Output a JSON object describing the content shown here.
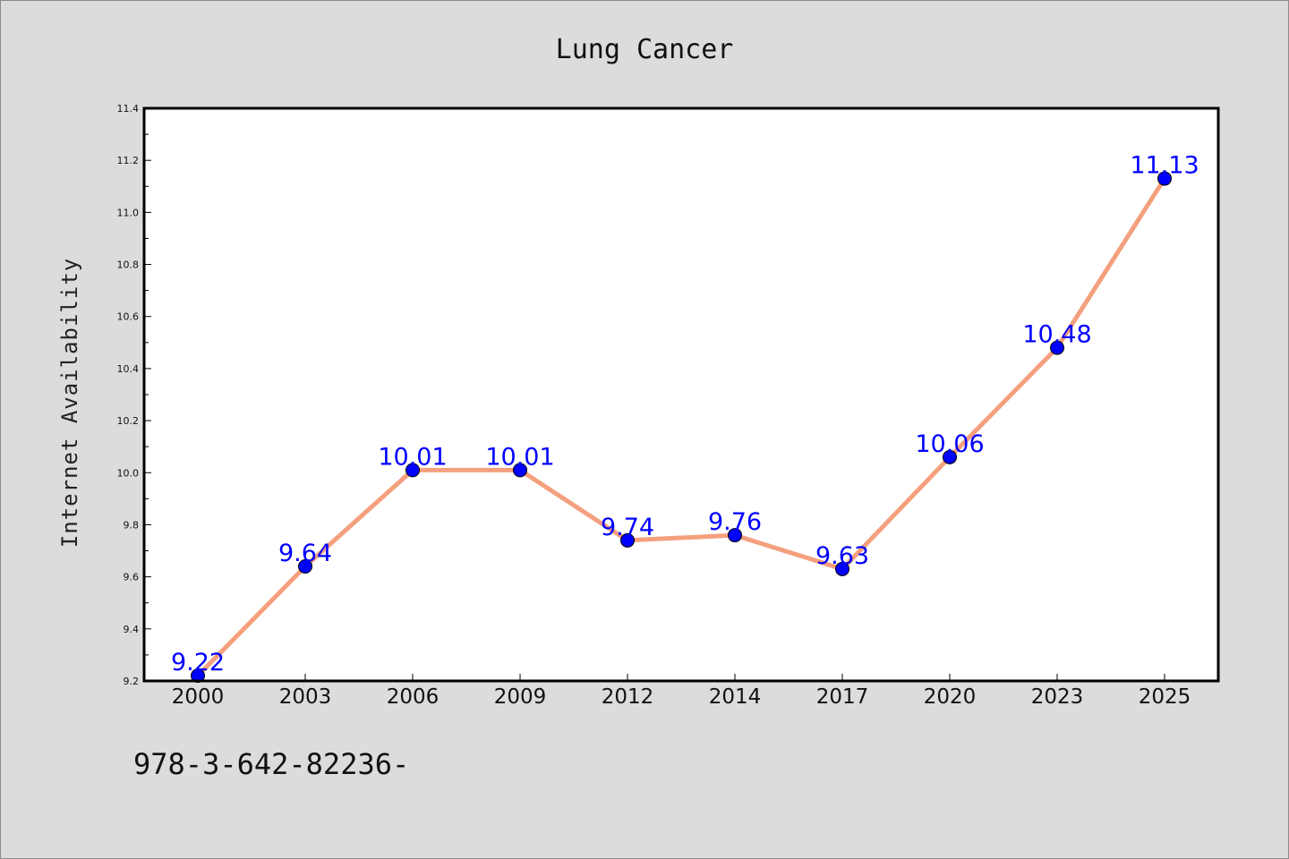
{
  "chart_data": {
    "type": "line",
    "title": "Lung Cancer",
    "xlabel": "",
    "ylabel": "Internet Availability",
    "categories": [
      "2000",
      "2003",
      "2006",
      "2009",
      "2012",
      "2014",
      "2017",
      "2020",
      "2023",
      "2025"
    ],
    "series": [
      {
        "values": [
          9.22,
          9.64,
          10.01,
          10.01,
          9.74,
          9.76,
          9.63,
          10.06,
          10.48,
          11.13
        ],
        "line_color": "#f4a07e",
        "marker_color": "#0000ff"
      }
    ],
    "data_labels": [
      "9.22",
      "9.64",
      "10.01",
      "10.01",
      "9.74",
      "9.76",
      "9.63",
      "10.06",
      "10.48",
      "11.13"
    ],
    "ylim": [
      9.2,
      11.4
    ],
    "y_ticks": [
      "9.2",
      "9.4",
      "9.6",
      "9.8",
      "10.0",
      "10.2",
      "10.4",
      "10.6",
      "10.8",
      "11.0",
      "11.2",
      "11.4"
    ],
    "grid": false,
    "legend": "none"
  },
  "footer": {
    "text": "978-3-642-82236-"
  },
  "colors": {
    "background": "#dcdcdc",
    "plot_background": "#ffffff",
    "line": "#f4a07e",
    "marker": "#0000ff",
    "data_label": "#0000ff"
  }
}
